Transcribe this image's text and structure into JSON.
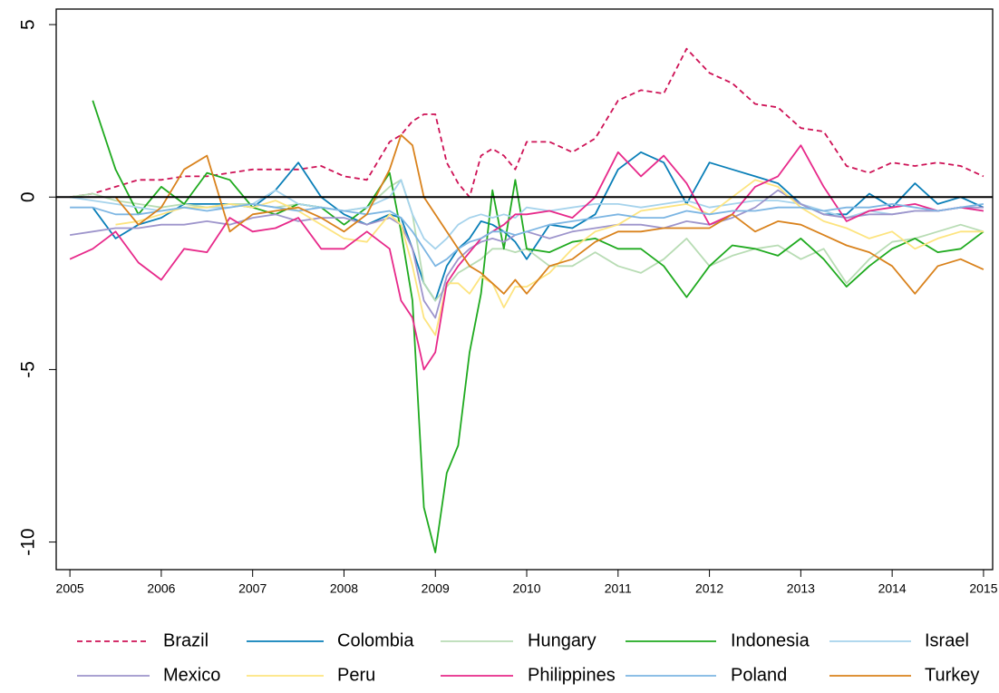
{
  "chart_data": {
    "type": "line",
    "x": [
      2005,
      2005.25,
      2005.5,
      2005.75,
      2006,
      2006.25,
      2006.5,
      2006.75,
      2007,
      2007.25,
      2007.5,
      2007.75,
      2008,
      2008.25,
      2008.5,
      2008.625,
      2008.75,
      2008.875,
      2009,
      2009.125,
      2009.25,
      2009.375,
      2009.5,
      2009.625,
      2009.75,
      2009.875,
      2010,
      2010.25,
      2010.5,
      2010.75,
      2011,
      2011.25,
      2011.5,
      2011.75,
      2012,
      2012.25,
      2012.5,
      2012.75,
      2013,
      2013.25,
      2013.5,
      2013.75,
      2014,
      2014.25,
      2014.5,
      2014.75,
      2015
    ],
    "xlim": [
      2004.85,
      2015.1
    ],
    "xticks": [
      2005,
      2006,
      2007,
      2008,
      2009,
      2010,
      2011,
      2012,
      2013,
      2014,
      2015
    ],
    "ylim": [
      -10.8,
      5.45
    ],
    "yticks": [
      -10,
      -5,
      0,
      5
    ],
    "reference_line": 0,
    "legend": "bottom",
    "series": [
      {
        "name": "Brazil",
        "color": "#ce1256",
        "linestyle": "dashed",
        "values": [
          0,
          0.1,
          0.3,
          0.5,
          0.5,
          0.6,
          0.6,
          0.7,
          0.8,
          0.8,
          0.8,
          0.9,
          0.6,
          0.5,
          1.6,
          1.8,
          2.2,
          2.4,
          2.4,
          1.0,
          0.4,
          0.0,
          1.2,
          1.4,
          1.2,
          0.8,
          1.6,
          1.6,
          1.3,
          1.7,
          2.8,
          3.1,
          3.0,
          4.3,
          3.6,
          3.3,
          2.7,
          2.6,
          2.0,
          1.9,
          0.9,
          0.7,
          1.0,
          0.9,
          1.0,
          0.9,
          0.6
        ]
      },
      {
        "name": "Colombia",
        "color": "#0a7fb8",
        "linestyle": "solid",
        "values": [
          null,
          -0.3,
          -1.2,
          -0.8,
          -0.6,
          -0.2,
          -0.2,
          -0.2,
          -0.3,
          0.2,
          1.0,
          0.0,
          -0.5,
          -0.8,
          -0.5,
          -0.6,
          -1.5,
          -2.5,
          -3.0,
          -2.0,
          -1.5,
          -1.2,
          -0.7,
          -0.8,
          -1.0,
          -1.3,
          -1.8,
          -0.8,
          -0.9,
          -0.5,
          0.8,
          1.3,
          1.0,
          -0.2,
          1.0,
          0.8,
          0.6,
          0.4,
          -0.2,
          -0.5,
          -0.5,
          0.1,
          -0.3,
          0.4,
          -0.2,
          0.0,
          -0.3
        ]
      },
      {
        "name": "Hungary",
        "color": "#b8dcb4",
        "linestyle": "solid",
        "values": [
          0.0,
          0.1,
          -0.1,
          -0.2,
          -0.3,
          -0.2,
          -0.3,
          -0.2,
          -0.2,
          -0.3,
          -0.2,
          -0.3,
          -0.4,
          -0.3,
          0.3,
          0.5,
          -0.5,
          -2.5,
          -3.0,
          -2.6,
          -2.2,
          -2.0,
          -1.8,
          -1.5,
          -1.5,
          -1.6,
          -1.5,
          -2.0,
          -2.0,
          -1.6,
          -2.0,
          -2.2,
          -1.8,
          -1.2,
          -2.0,
          -1.7,
          -1.5,
          -1.4,
          -1.8,
          -1.5,
          -2.5,
          -1.8,
          -1.3,
          -1.2,
          -1.0,
          -0.8,
          -1.0
        ]
      },
      {
        "name": "Indonesia",
        "color": "#1faa1f",
        "linestyle": "solid",
        "values": [
          null,
          2.8,
          0.8,
          -0.5,
          0.3,
          -0.2,
          0.7,
          0.5,
          -0.3,
          -0.5,
          -0.2,
          -0.3,
          -0.8,
          -0.3,
          0.7,
          -1.0,
          -3.0,
          -9.0,
          -10.3,
          -8.0,
          -7.2,
          -4.5,
          -2.8,
          0.2,
          -1.5,
          0.5,
          -1.5,
          -1.6,
          -1.3,
          -1.2,
          -1.5,
          -1.5,
          -2.0,
          -2.9,
          -2.0,
          -1.4,
          -1.5,
          -1.7,
          -1.2,
          -1.8,
          -2.6,
          -2.0,
          -1.5,
          -1.2,
          -1.6,
          -1.5,
          -1.0
        ]
      },
      {
        "name": "Israel",
        "color": "#a6d3ec",
        "linestyle": "solid",
        "values": [
          0.0,
          -0.1,
          -0.2,
          -0.3,
          -0.4,
          -0.3,
          -0.3,
          -0.3,
          -0.2,
          0.2,
          -0.2,
          -0.3,
          -0.4,
          -0.3,
          0.0,
          0.5,
          -0.5,
          -1.2,
          -1.5,
          -1.2,
          -0.8,
          -0.6,
          -0.5,
          -0.6,
          -0.5,
          -0.6,
          -0.3,
          -0.4,
          -0.3,
          -0.2,
          -0.2,
          -0.3,
          -0.2,
          -0.1,
          -0.3,
          -0.2,
          -0.1,
          -0.1,
          -0.2,
          -0.4,
          -0.6,
          -0.4,
          -0.5,
          -0.4,
          -0.4,
          -0.3,
          -0.4
        ]
      },
      {
        "name": "Mexico",
        "color": "#9e95cc",
        "linestyle": "solid",
        "values": [
          -1.1,
          -1.0,
          -0.9,
          -0.9,
          -0.8,
          -0.8,
          -0.7,
          -0.8,
          -0.6,
          -0.5,
          -0.7,
          -0.6,
          -0.6,
          -0.8,
          -0.6,
          -0.8,
          -1.5,
          -3.0,
          -3.5,
          -2.3,
          -1.8,
          -1.5,
          -1.3,
          -1.2,
          -1.3,
          -1.1,
          -1.0,
          -1.2,
          -1.0,
          -0.9,
          -0.8,
          -0.8,
          -0.9,
          -0.7,
          -0.8,
          -0.6,
          -0.3,
          0.2,
          -0.2,
          -0.5,
          -0.6,
          -0.5,
          -0.5,
          -0.4,
          -0.4,
          -0.3,
          -0.3
        ]
      },
      {
        "name": "Peru",
        "color": "#fde47f",
        "linestyle": "solid",
        "values": [
          null,
          null,
          -0.8,
          -0.7,
          -0.5,
          -0.3,
          -0.3,
          -0.2,
          -0.3,
          -0.1,
          -0.4,
          -0.8,
          -1.2,
          -1.3,
          -0.5,
          -0.8,
          -2.0,
          -3.5,
          -4.0,
          -2.5,
          -2.5,
          -2.8,
          -2.3,
          -2.5,
          -3.2,
          -2.6,
          -2.6,
          -2.2,
          -1.5,
          -1.0,
          -0.8,
          -0.4,
          -0.3,
          -0.2,
          -0.5,
          0.0,
          0.5,
          0.3,
          -0.3,
          -0.7,
          -0.9,
          -1.2,
          -1.0,
          -1.5,
          -1.2,
          -1.0,
          -1.0
        ]
      },
      {
        "name": "Philippines",
        "color": "#e7298a",
        "linestyle": "solid",
        "values": [
          -1.8,
          -1.5,
          -1.0,
          -1.9,
          -2.4,
          -1.5,
          -1.6,
          -0.6,
          -1.0,
          -0.9,
          -0.6,
          -1.5,
          -1.5,
          -1.0,
          -1.5,
          -3.0,
          -3.5,
          -5.0,
          -4.5,
          -2.5,
          -2.0,
          -1.6,
          -1.2,
          -1.0,
          -0.8,
          -0.5,
          -0.5,
          -0.4,
          -0.6,
          0.0,
          1.3,
          0.6,
          1.2,
          0.4,
          -0.8,
          -0.5,
          0.3,
          0.6,
          1.5,
          0.3,
          -0.7,
          -0.4,
          -0.3,
          -0.2,
          -0.4,
          -0.3,
          -0.4
        ]
      },
      {
        "name": "Poland",
        "color": "#7db6e3",
        "linestyle": "solid",
        "values": [
          -0.3,
          -0.3,
          -0.5,
          -0.5,
          -0.4,
          -0.3,
          -0.4,
          -0.3,
          -0.2,
          -0.3,
          -0.4,
          -0.3,
          -0.4,
          -0.5,
          -0.4,
          -0.6,
          -1.0,
          -1.5,
          -2.0,
          -1.8,
          -1.5,
          -1.3,
          -1.2,
          -1.0,
          -1.0,
          -1.1,
          -1.0,
          -0.8,
          -0.7,
          -0.6,
          -0.5,
          -0.6,
          -0.6,
          -0.4,
          -0.5,
          -0.4,
          -0.4,
          -0.3,
          -0.3,
          -0.4,
          -0.3,
          -0.3,
          -0.2,
          -0.3,
          -0.4,
          -0.3,
          -0.2
        ]
      },
      {
        "name": "Turkey",
        "color": "#d9821c",
        "linestyle": "solid",
        "values": [
          null,
          null,
          0.0,
          -0.8,
          -0.3,
          0.8,
          1.2,
          -1.0,
          -0.5,
          -0.4,
          -0.3,
          -0.6,
          -1.0,
          -0.5,
          0.8,
          1.8,
          1.5,
          0.0,
          -0.5,
          -1.0,
          -1.5,
          -2.0,
          -2.2,
          -2.5,
          -2.8,
          -2.4,
          -2.8,
          -2.0,
          -1.8,
          -1.3,
          -1.0,
          -1.0,
          -0.9,
          -0.9,
          -0.9,
          -0.5,
          -1.0,
          -0.7,
          -0.8,
          -1.1,
          -1.4,
          -1.6,
          -2.0,
          -2.8,
          -2.0,
          -1.8,
          -2.1
        ]
      }
    ]
  }
}
